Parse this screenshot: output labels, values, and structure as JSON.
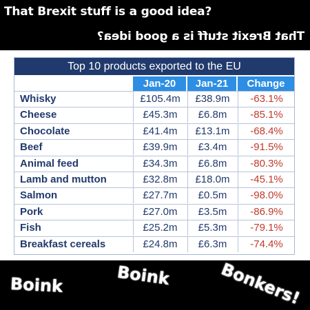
{
  "captions": {
    "top": "That Brexit stuff is a good idea?",
    "mirrored": "That Brexit stuff is a good idea?"
  },
  "table": {
    "title": "Top 10 products exported to the EU",
    "columns": [
      "Jan-20",
      "Jan-21",
      "Change"
    ],
    "rows": [
      {
        "product": "Whisky",
        "jan20": "£105.4m",
        "jan21": "£38.9m",
        "change": "-63.1%"
      },
      {
        "product": "Cheese",
        "jan20": "£45.3m",
        "jan21": "£6.8m",
        "change": "-85.1%"
      },
      {
        "product": "Chocolate",
        "jan20": "£41.4m",
        "jan21": "£13.1m",
        "change": "-68.4%"
      },
      {
        "product": "Beef",
        "jan20": "£39.9m",
        "jan21": "£3.4m",
        "change": "-91.5%"
      },
      {
        "product": "Animal feed",
        "jan20": "£34.3m",
        "jan21": "£6.8m",
        "change": "-80.3%"
      },
      {
        "product": "Lamb and mutton",
        "jan20": "£32.8m",
        "jan21": "£18.0m",
        "change": "-45.1%"
      },
      {
        "product": "Salmon",
        "jan20": "£27.7m",
        "jan21": "£0.5m",
        "change": "-98.0%"
      },
      {
        "product": "Pork",
        "jan20": "£27.0m",
        "jan21": "£3.5m",
        "change": "-86.9%"
      },
      {
        "product": "Fish",
        "jan20": "£25.2m",
        "jan21": "£5.3m",
        "change": "-79.1%"
      },
      {
        "product": "Breakfast cereals",
        "jan20": "£24.8m",
        "jan21": "£6.3m",
        "change": "-74.4%"
      }
    ]
  },
  "sound_effects": [
    "Boink",
    "Boink",
    "Bonkers!"
  ],
  "colors": {
    "title_bar": "#213a6d",
    "header_bar": "#2d8ee3",
    "product_text": "#213a6d",
    "change_text": "#c0392b",
    "background": "#000000"
  }
}
